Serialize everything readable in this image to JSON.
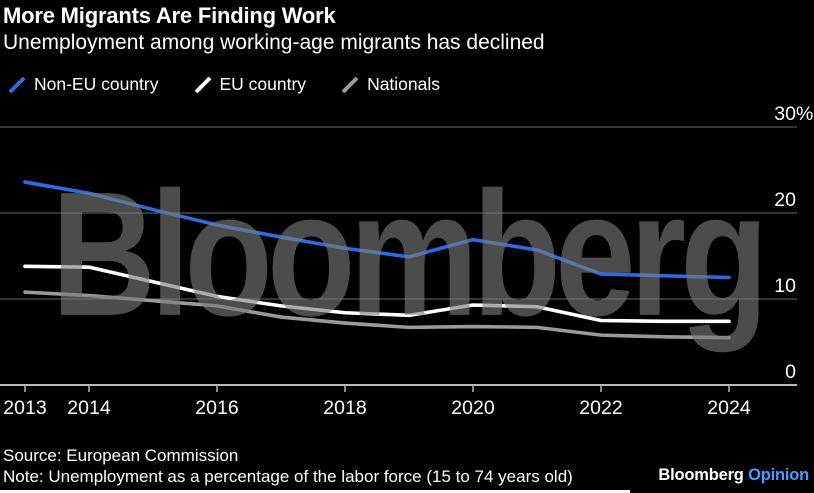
{
  "header": {
    "title": "More Migrants Are Finding Work",
    "subtitle": "Unemployment among working-age migrants has declined"
  },
  "watermark": "Bloomberg",
  "chart_data": {
    "type": "line",
    "x": [
      2013,
      2014,
      2015,
      2016,
      2017,
      2018,
      2019,
      2020,
      2021,
      2022,
      2023,
      2024
    ],
    "series": [
      {
        "name": "Non-EU country",
        "color": "#2d6ce0",
        "values": [
          23.6,
          22.3,
          20.4,
          18.6,
          17.2,
          15.9,
          14.9,
          16.9,
          15.7,
          12.9,
          12.7,
          12.5
        ]
      },
      {
        "name": "EU country",
        "color": "#ffffff",
        "values": [
          13.8,
          13.7,
          12.0,
          10.3,
          9.2,
          8.4,
          8.1,
          9.3,
          9.1,
          7.5,
          7.4,
          7.4
        ]
      },
      {
        "name": "Nationals",
        "color": "#9a9a9a",
        "values": [
          10.8,
          10.4,
          9.8,
          9.2,
          7.9,
          7.2,
          6.7,
          6.8,
          6.7,
          5.8,
          5.6,
          5.5
        ]
      }
    ],
    "title": "More Migrants Are Finding Work",
    "xlabel": "",
    "ylabel": "",
    "ylim": [
      0,
      30
    ],
    "grid": true,
    "legend_position": "top",
    "yticks": [
      {
        "v": 30,
        "label": "30",
        "suffix": "%"
      },
      {
        "v": 20,
        "label": "20",
        "suffix": ""
      },
      {
        "v": 10,
        "label": "10",
        "suffix": ""
      },
      {
        "v": 0,
        "label": "0",
        "suffix": ""
      }
    ],
    "xticks": [
      {
        "year": 2013,
        "label": "2013"
      },
      {
        "year": 2014,
        "label": "2014"
      },
      {
        "year": 2016,
        "label": "2016"
      },
      {
        "year": 2018,
        "label": "2018"
      },
      {
        "year": 2020,
        "label": "2020"
      },
      {
        "year": 2022,
        "label": "2022"
      },
      {
        "year": 2024,
        "label": "2024"
      }
    ]
  },
  "footer": {
    "source": "Source: European Commission",
    "note": "Note: Unemployment as a percentage of the labor force (15 to 74 years old)",
    "brand": "Bloomberg",
    "brand_suffix": "Opinion",
    "brand_suffix_color": "#4a9bff"
  },
  "colors": {
    "background": "#000000",
    "gridline": "#6a6a6a",
    "axis": "#b8b8b8",
    "text": "#ffffff"
  }
}
